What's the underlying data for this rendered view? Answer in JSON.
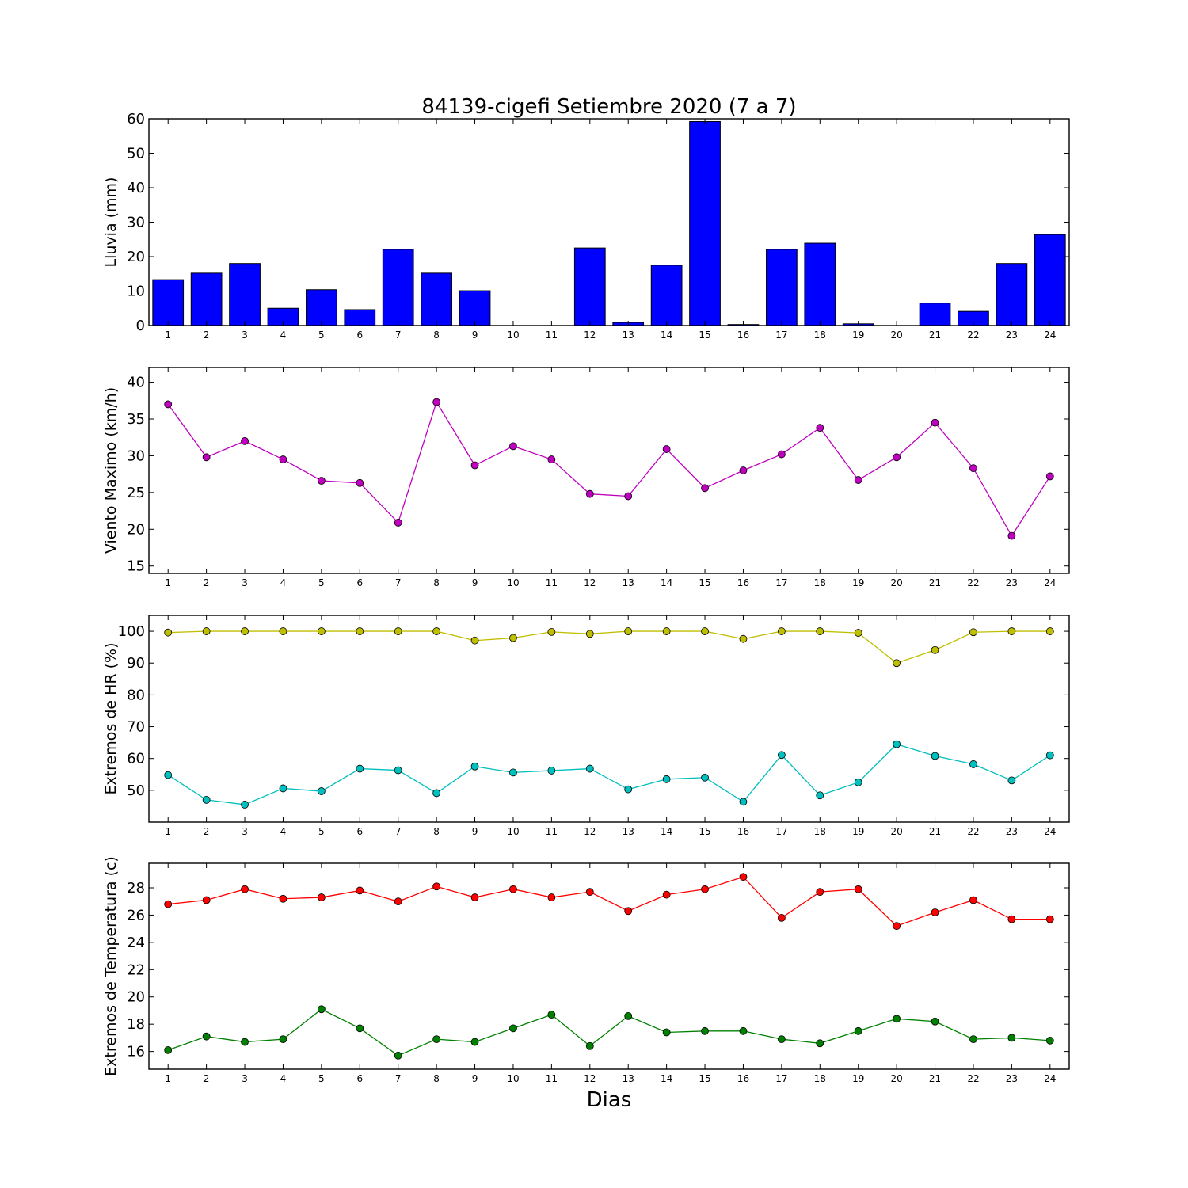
{
  "title": "84139-cigefi Setiembre 2020  (7 a 7)",
  "xlabel": "Dias",
  "chart_data": [
    {
      "type": "bar",
      "ylabel": "Lluvia (mm)",
      "ylim": [
        0,
        60
      ],
      "yticks": [
        0,
        10,
        20,
        30,
        40,
        50,
        60
      ],
      "xlim": [
        0.5,
        24.5
      ],
      "x": [
        1,
        2,
        3,
        4,
        5,
        6,
        7,
        8,
        9,
        10,
        11,
        12,
        13,
        14,
        15,
        16,
        17,
        18,
        19,
        20,
        21,
        22,
        23,
        24
      ],
      "series": [
        {
          "color": "#0000ff",
          "values": [
            13.3,
            15.2,
            18.0,
            5.0,
            10.4,
            4.6,
            22.1,
            15.2,
            10.1,
            0.0,
            0.0,
            22.5,
            0.9,
            17.5,
            59.2,
            0.3,
            22.1,
            23.9,
            0.5,
            0.0,
            6.5,
            4.1,
            18.0,
            26.4
          ]
        }
      ]
    },
    {
      "type": "line",
      "ylabel": "Viento Maximo (km/h)",
      "ylim": [
        14,
        42
      ],
      "yticks": [
        15,
        20,
        25,
        30,
        35,
        40
      ],
      "xlim": [
        0.5,
        24.5
      ],
      "x": [
        1,
        2,
        3,
        4,
        5,
        6,
        7,
        8,
        9,
        10,
        11,
        12,
        13,
        14,
        15,
        16,
        17,
        18,
        19,
        20,
        21,
        22,
        23,
        24
      ],
      "series": [
        {
          "color": "#bf00bf",
          "values": [
            37.0,
            29.8,
            32.0,
            29.5,
            26.6,
            26.3,
            20.9,
            37.3,
            28.7,
            31.3,
            29.5,
            24.8,
            24.5,
            30.9,
            25.6,
            28.0,
            30.2,
            33.8,
            26.7,
            29.8,
            34.5,
            28.3,
            19.1,
            27.2
          ]
        }
      ]
    },
    {
      "type": "line",
      "ylabel": "Extremos de HR (%)",
      "ylim": [
        40,
        105
      ],
      "yticks": [
        50,
        60,
        70,
        80,
        90,
        100
      ],
      "xlim": [
        0.5,
        24.5
      ],
      "x": [
        1,
        2,
        3,
        4,
        5,
        6,
        7,
        8,
        9,
        10,
        11,
        12,
        13,
        14,
        15,
        16,
        17,
        18,
        19,
        20,
        21,
        22,
        23,
        24
      ],
      "series": [
        {
          "color": "#bfbf00",
          "values": [
            99.6,
            100,
            100,
            100,
            100,
            100,
            100,
            100,
            97.1,
            97.9,
            99.8,
            99.2,
            100,
            100,
            100,
            97.6,
            100,
            100,
            99.5,
            90.0,
            94.1,
            99.7,
            100,
            100
          ]
        },
        {
          "color": "#00bfbf",
          "values": [
            54.8,
            47.0,
            45.5,
            50.6,
            49.7,
            56.8,
            56.3,
            49.1,
            57.5,
            55.6,
            56.2,
            56.8,
            50.3,
            53.5,
            54.0,
            46.4,
            61.1,
            48.4,
            52.5,
            64.5,
            60.8,
            58.2,
            53.1,
            61.0
          ]
        }
      ]
    },
    {
      "type": "line",
      "ylabel": "Extremos de Temperatura (c)",
      "ylim": [
        14.7,
        29.8
      ],
      "yticks": [
        16,
        18,
        20,
        22,
        24,
        26,
        28
      ],
      "xlim": [
        0.5,
        24.5
      ],
      "x": [
        1,
        2,
        3,
        4,
        5,
        6,
        7,
        8,
        9,
        10,
        11,
        12,
        13,
        14,
        15,
        16,
        17,
        18,
        19,
        20,
        21,
        22,
        23,
        24
      ],
      "series": [
        {
          "color": "#ff0000",
          "values": [
            26.8,
            27.1,
            27.9,
            27.2,
            27.3,
            27.8,
            27.0,
            28.1,
            27.3,
            27.9,
            27.3,
            27.7,
            26.3,
            27.5,
            27.9,
            28.8,
            25.8,
            27.7,
            27.9,
            25.2,
            26.2,
            27.1,
            25.7,
            25.7
          ]
        },
        {
          "color": "#008000",
          "values": [
            16.1,
            17.1,
            16.7,
            16.9,
            19.1,
            17.7,
            15.7,
            16.9,
            16.7,
            17.7,
            18.7,
            16.4,
            18.6,
            17.4,
            17.5,
            17.5,
            16.9,
            16.6,
            17.5,
            18.4,
            18.2,
            16.9,
            17.0,
            16.8
          ]
        }
      ]
    }
  ]
}
